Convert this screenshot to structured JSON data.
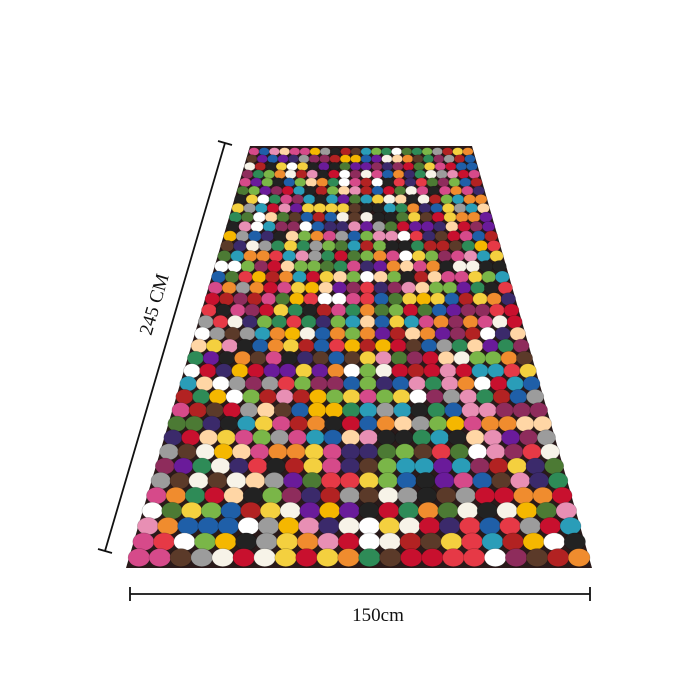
{
  "dimensions": {
    "length": "245 CM",
    "width": "150cm"
  }
}
